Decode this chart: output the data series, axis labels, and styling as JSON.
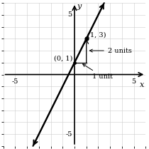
{
  "xlim": [
    -6,
    6
  ],
  "ylim": [
    -6,
    6
  ],
  "xlabel": "x",
  "ylabel": "y",
  "line_color": "#000000",
  "line_width": 1.5,
  "point1": [
    0,
    1
  ],
  "point2": [
    1,
    3
  ],
  "point1_label": "(0, 1)",
  "point2_label": "(1, 3)",
  "annotation_2units": "2 units",
  "annotation_1unit": "1 unit",
  "background_color": "#ffffff",
  "font_family": "DejaVu Serif",
  "tick_label_fontsize": 7,
  "axis_label_fontsize": 8,
  "annot_fontsize": 7,
  "grid_color": "#cccccc",
  "grid_lw": 0.4,
  "axis_lw": 1.2,
  "line_lw": 1.5,
  "x_tick_labels": [
    [
      -5,
      "-5"
    ],
    [
      5,
      "5"
    ]
  ],
  "y_tick_labels": [
    [
      -5,
      "-5"
    ],
    [
      5,
      "5"
    ]
  ]
}
